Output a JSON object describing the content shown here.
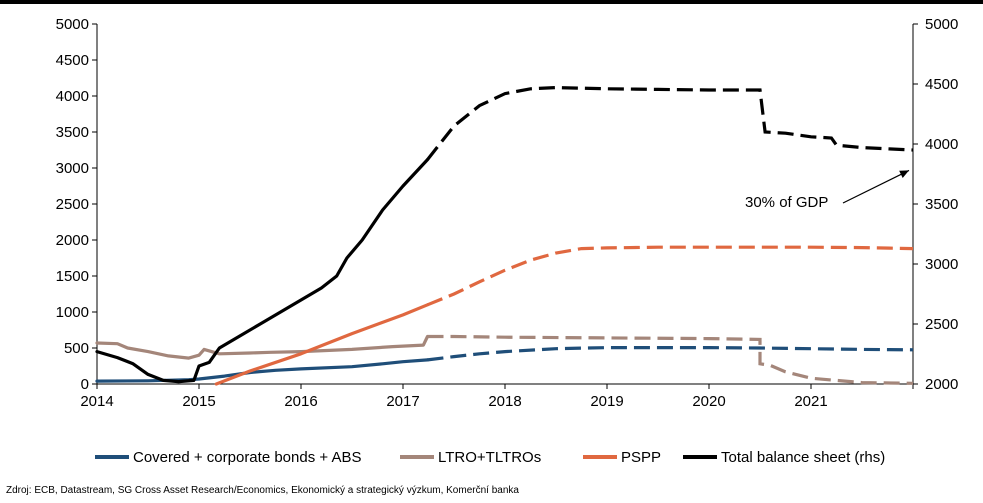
{
  "chart_data": {
    "type": "line",
    "title": "",
    "xlabel": "",
    "ylabel": "",
    "x_ticks": [
      "2014",
      "2015",
      "2016",
      "2017",
      "2018",
      "2019",
      "2020",
      "2021"
    ],
    "x_range": [
      2014.0,
      2022.0
    ],
    "ylim_left": [
      0,
      5000
    ],
    "ylim_right": [
      2000,
      5000
    ],
    "y_ticks_left": [
      "0",
      "500",
      "1000",
      "1500",
      "2000",
      "2500",
      "3000",
      "3500",
      "4000",
      "4500",
      "5000"
    ],
    "y_ticks_right": [
      "2000",
      "2500",
      "3000",
      "3500",
      "4000",
      "4500",
      "5000"
    ],
    "grid": false,
    "legend_position": "bottom",
    "forecast_from": 2017.24,
    "annotation": {
      "text": "30% of GDP",
      "points_to": [
        2022.0,
        3780
      ]
    },
    "series": [
      {
        "name": "Covered + corporate bonds + ABS",
        "axis": "left",
        "color": "#1f4e79",
        "points": [
          [
            2014.0,
            40
          ],
          [
            2014.5,
            45
          ],
          [
            2014.9,
            60
          ],
          [
            2015.0,
            70
          ],
          [
            2015.25,
            110
          ],
          [
            2015.5,
            160
          ],
          [
            2015.75,
            190
          ],
          [
            2016.0,
            210
          ],
          [
            2016.5,
            240
          ],
          [
            2016.8,
            280
          ],
          [
            2017.0,
            310
          ],
          [
            2017.24,
            335
          ],
          [
            2017.5,
            380
          ],
          [
            2017.75,
            420
          ],
          [
            2018.0,
            450
          ],
          [
            2018.5,
            490
          ],
          [
            2019.0,
            505
          ],
          [
            2020.0,
            505
          ],
          [
            2020.5,
            500
          ],
          [
            2021.0,
            490
          ],
          [
            2021.5,
            480
          ],
          [
            2022.0,
            475
          ]
        ]
      },
      {
        "name": "LTRO+TLTROs",
        "axis": "left",
        "color": "#a4867a",
        "points": [
          [
            2014.0,
            570
          ],
          [
            2014.2,
            560
          ],
          [
            2014.3,
            500
          ],
          [
            2014.5,
            450
          ],
          [
            2014.7,
            390
          ],
          [
            2014.9,
            360
          ],
          [
            2015.0,
            400
          ],
          [
            2015.05,
            480
          ],
          [
            2015.2,
            420
          ],
          [
            2015.5,
            430
          ],
          [
            2015.7,
            440
          ],
          [
            2016.0,
            450
          ],
          [
            2016.5,
            480
          ],
          [
            2016.9,
            520
          ],
          [
            2017.2,
            540
          ],
          [
            2017.24,
            660
          ],
          [
            2017.5,
            660
          ],
          [
            2018.0,
            650
          ],
          [
            2019.0,
            640
          ],
          [
            2020.0,
            630
          ],
          [
            2020.5,
            620
          ],
          [
            2020.5,
            280
          ],
          [
            2020.6,
            260
          ],
          [
            2020.75,
            170
          ],
          [
            2021.0,
            80
          ],
          [
            2021.5,
            20
          ],
          [
            2022.0,
            10
          ]
        ]
      },
      {
        "name": "PSPP",
        "axis": "left",
        "color": "#e06840",
        "points": [
          [
            2015.17,
            0
          ],
          [
            2015.5,
            180
          ],
          [
            2016.0,
            420
          ],
          [
            2016.5,
            700
          ],
          [
            2017.0,
            960
          ],
          [
            2017.24,
            1100
          ],
          [
            2017.5,
            1250
          ],
          [
            2017.75,
            1420
          ],
          [
            2018.0,
            1580
          ],
          [
            2018.25,
            1720
          ],
          [
            2018.5,
            1820
          ],
          [
            2018.75,
            1880
          ],
          [
            2019.0,
            1890
          ],
          [
            2019.5,
            1900
          ],
          [
            2020.0,
            1900
          ],
          [
            2020.5,
            1900
          ],
          [
            2021.0,
            1900
          ],
          [
            2021.5,
            1895
          ],
          [
            2022.0,
            1880
          ]
        ]
      },
      {
        "name": "Total balance sheet (rhs)",
        "axis": "right",
        "color": "#000000",
        "points": [
          [
            2014.0,
            2270
          ],
          [
            2014.2,
            2220
          ],
          [
            2014.35,
            2170
          ],
          [
            2014.5,
            2080
          ],
          [
            2014.65,
            2030
          ],
          [
            2014.8,
            2020
          ],
          [
            2014.95,
            2030
          ],
          [
            2015.0,
            2150
          ],
          [
            2015.1,
            2180
          ],
          [
            2015.2,
            2300
          ],
          [
            2015.4,
            2400
          ],
          [
            2015.6,
            2500
          ],
          [
            2015.8,
            2600
          ],
          [
            2016.0,
            2700
          ],
          [
            2016.2,
            2800
          ],
          [
            2016.35,
            2900
          ],
          [
            2016.45,
            3050
          ],
          [
            2016.6,
            3200
          ],
          [
            2016.8,
            3450
          ],
          [
            2017.0,
            3650
          ],
          [
            2017.24,
            3870
          ],
          [
            2017.5,
            4150
          ],
          [
            2017.75,
            4320
          ],
          [
            2018.0,
            4420
          ],
          [
            2018.25,
            4460
          ],
          [
            2018.5,
            4470
          ],
          [
            2019.0,
            4460
          ],
          [
            2019.5,
            4455
          ],
          [
            2020.0,
            4450
          ],
          [
            2020.5,
            4450
          ],
          [
            2020.55,
            4100
          ],
          [
            2020.75,
            4090
          ],
          [
            2021.0,
            4060
          ],
          [
            2021.2,
            4050
          ],
          [
            2021.25,
            3990
          ],
          [
            2021.5,
            3970
          ],
          [
            2021.75,
            3960
          ],
          [
            2022.0,
            3950
          ]
        ]
      }
    ]
  },
  "source_note": "Zdroj: ECB, Datastream, SG Cross Asset Research/Economics, Ekonomický a strategický výzkum, Komerční banka"
}
